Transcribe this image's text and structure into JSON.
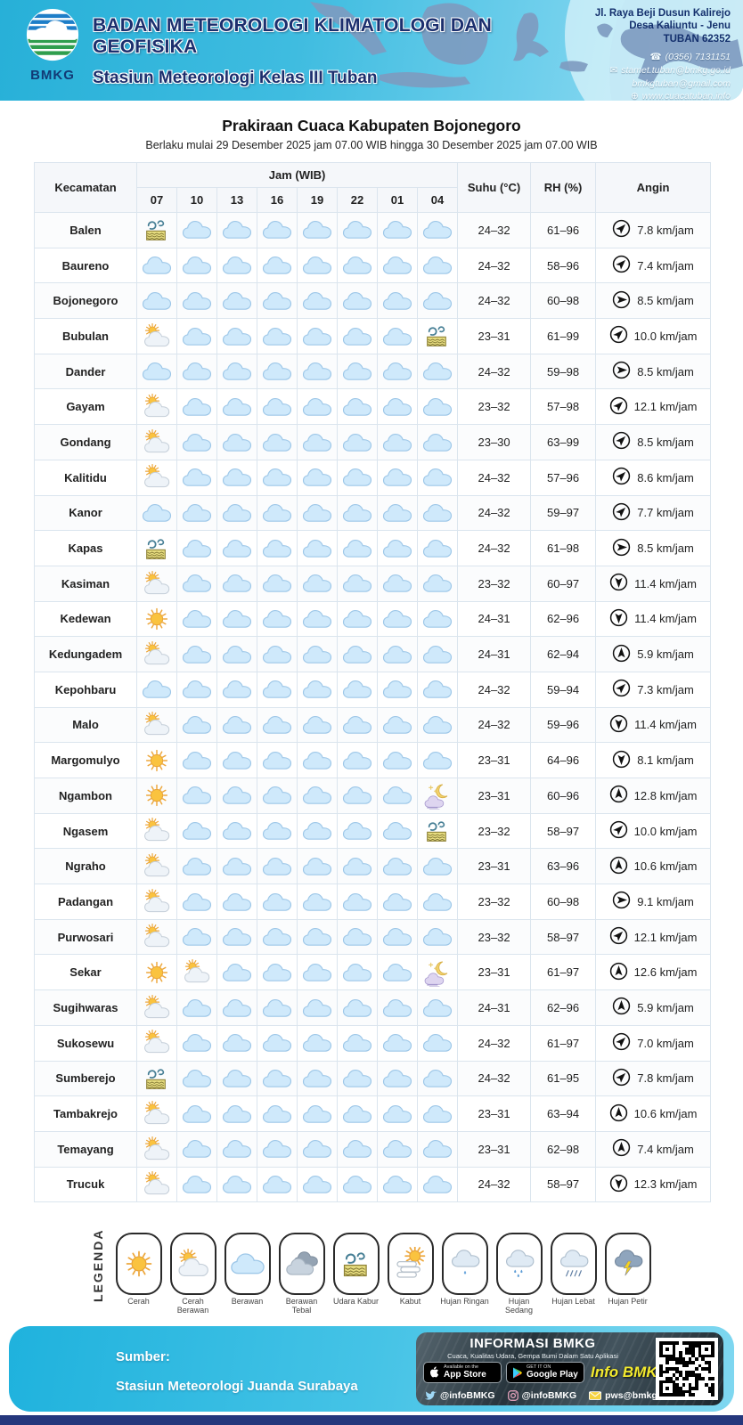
{
  "header": {
    "logo_text": "BMKG",
    "agency": "BADAN METEOROLOGI KLIMATOLOGI DAN GEOFISIKA",
    "station": "Stasiun Meteorologi Kelas III Tuban",
    "address_lines": [
      "Jl. Raya Beji Dusun Kalirejo",
      "Desa Kaliuntu - Jenu",
      "TUBAN 62352"
    ],
    "phone": "(0356) 7131151",
    "email1": "stamet.tuban@bmkg.go.id",
    "email2": "bmkgtuban@gmail.com",
    "website": "www.cuacatuban.info"
  },
  "title": "Prakiraan Cuaca Kabupaten Bojonegoro",
  "subtitle": "Berlaku mulai 29 Desember 2025 jam 07.00 WIB hingga 30 Desember 2025 jam 07.00 WIB",
  "table": {
    "col_kecamatan": "Kecamatan",
    "col_jam": "Jam (WIB)",
    "hours": [
      "07",
      "10",
      "13",
      "16",
      "19",
      "22",
      "01",
      "04"
    ],
    "col_suhu": "Suhu (°C)",
    "col_rh": "RH (%)",
    "col_angin": "Angin",
    "rows": [
      {
        "name": "Balen",
        "icons": [
          "udara-kabur",
          "berawan",
          "berawan",
          "berawan",
          "berawan",
          "berawan",
          "berawan",
          "berawan"
        ],
        "suhu": "24–32",
        "rh": "61–96",
        "wind_dir": "NE",
        "wind_speed": "7.8 km/jam"
      },
      {
        "name": "Baureno",
        "icons": [
          "berawan",
          "berawan",
          "berawan",
          "berawan",
          "berawan",
          "berawan",
          "berawan",
          "berawan"
        ],
        "suhu": "24–32",
        "rh": "58–96",
        "wind_dir": "NE",
        "wind_speed": "7.4 km/jam"
      },
      {
        "name": "Bojonegoro",
        "icons": [
          "berawan",
          "berawan",
          "berawan",
          "berawan",
          "berawan",
          "berawan",
          "berawan",
          "berawan"
        ],
        "suhu": "24–32",
        "rh": "60–98",
        "wind_dir": "E",
        "wind_speed": "8.5 km/jam"
      },
      {
        "name": "Bubulan",
        "icons": [
          "cerah-berawan",
          "berawan",
          "berawan",
          "berawan",
          "berawan",
          "berawan",
          "berawan",
          "udara-kabur"
        ],
        "suhu": "23–31",
        "rh": "61–99",
        "wind_dir": "NE",
        "wind_speed": "10.0 km/jam"
      },
      {
        "name": "Dander",
        "icons": [
          "berawan",
          "berawan",
          "berawan",
          "berawan",
          "berawan",
          "berawan",
          "berawan",
          "berawan"
        ],
        "suhu": "24–32",
        "rh": "59–98",
        "wind_dir": "E",
        "wind_speed": "8.5 km/jam"
      },
      {
        "name": "Gayam",
        "icons": [
          "cerah-berawan",
          "berawan",
          "berawan",
          "berawan",
          "berawan",
          "berawan",
          "berawan",
          "berawan"
        ],
        "suhu": "23–32",
        "rh": "57–98",
        "wind_dir": "NE",
        "wind_speed": "12.1 km/jam"
      },
      {
        "name": "Gondang",
        "icons": [
          "cerah-berawan",
          "berawan",
          "berawan",
          "berawan",
          "berawan",
          "berawan",
          "berawan",
          "berawan"
        ],
        "suhu": "23–30",
        "rh": "63–99",
        "wind_dir": "NE",
        "wind_speed": "8.5 km/jam"
      },
      {
        "name": "Kalitidu",
        "icons": [
          "cerah-berawan",
          "berawan",
          "berawan",
          "berawan",
          "berawan",
          "berawan",
          "berawan",
          "berawan"
        ],
        "suhu": "24–32",
        "rh": "57–96",
        "wind_dir": "NE",
        "wind_speed": "8.6 km/jam"
      },
      {
        "name": "Kanor",
        "icons": [
          "berawan",
          "berawan",
          "berawan",
          "berawan",
          "berawan",
          "berawan",
          "berawan",
          "berawan"
        ],
        "suhu": "24–32",
        "rh": "59–97",
        "wind_dir": "NE",
        "wind_speed": "7.7 km/jam"
      },
      {
        "name": "Kapas",
        "icons": [
          "udara-kabur",
          "berawan",
          "berawan",
          "berawan",
          "berawan",
          "berawan",
          "berawan",
          "berawan"
        ],
        "suhu": "24–32",
        "rh": "61–98",
        "wind_dir": "E",
        "wind_speed": "8.5 km/jam"
      },
      {
        "name": "Kasiman",
        "icons": [
          "cerah-berawan",
          "berawan",
          "berawan",
          "berawan",
          "berawan",
          "berawan",
          "berawan",
          "berawan"
        ],
        "suhu": "23–32",
        "rh": "60–97",
        "wind_dir": "S",
        "wind_speed": "11.4 km/jam"
      },
      {
        "name": "Kedewan",
        "icons": [
          "cerah",
          "berawan",
          "berawan",
          "berawan",
          "berawan",
          "berawan",
          "berawan",
          "berawan"
        ],
        "suhu": "24–31",
        "rh": "62–96",
        "wind_dir": "S",
        "wind_speed": "11.4 km/jam"
      },
      {
        "name": "Kedungadem",
        "icons": [
          "cerah-berawan",
          "berawan",
          "berawan",
          "berawan",
          "berawan",
          "berawan",
          "berawan",
          "berawan"
        ],
        "suhu": "24–31",
        "rh": "62–94",
        "wind_dir": "N",
        "wind_speed": "5.9 km/jam"
      },
      {
        "name": "Kepohbaru",
        "icons": [
          "berawan",
          "berawan",
          "berawan",
          "berawan",
          "berawan",
          "berawan",
          "berawan",
          "berawan"
        ],
        "suhu": "24–32",
        "rh": "59–94",
        "wind_dir": "NE",
        "wind_speed": "7.3 km/jam"
      },
      {
        "name": "Malo",
        "icons": [
          "cerah-berawan",
          "berawan",
          "berawan",
          "berawan",
          "berawan",
          "berawan",
          "berawan",
          "berawan"
        ],
        "suhu": "24–32",
        "rh": "59–96",
        "wind_dir": "S",
        "wind_speed": "11.4 km/jam"
      },
      {
        "name": "Margomulyo",
        "icons": [
          "cerah",
          "berawan",
          "berawan",
          "berawan",
          "berawan",
          "berawan",
          "berawan",
          "berawan"
        ],
        "suhu": "23–31",
        "rh": "64–96",
        "wind_dir": "S",
        "wind_speed": "8.1 km/jam"
      },
      {
        "name": "Ngambon",
        "icons": [
          "cerah",
          "berawan",
          "berawan",
          "berawan",
          "berawan",
          "berawan",
          "berawan",
          "kabut-malam"
        ],
        "suhu": "23–31",
        "rh": "60–96",
        "wind_dir": "N",
        "wind_speed": "12.8 km/jam"
      },
      {
        "name": "Ngasem",
        "icons": [
          "cerah-berawan",
          "berawan",
          "berawan",
          "berawan",
          "berawan",
          "berawan",
          "berawan",
          "udara-kabur"
        ],
        "suhu": "23–32",
        "rh": "58–97",
        "wind_dir": "NE",
        "wind_speed": "10.0 km/jam"
      },
      {
        "name": "Ngraho",
        "icons": [
          "cerah-berawan",
          "berawan",
          "berawan",
          "berawan",
          "berawan",
          "berawan",
          "berawan",
          "berawan"
        ],
        "suhu": "23–31",
        "rh": "63–96",
        "wind_dir": "N",
        "wind_speed": "10.6 km/jam"
      },
      {
        "name": "Padangan",
        "icons": [
          "cerah-berawan",
          "berawan",
          "berawan",
          "berawan",
          "berawan",
          "berawan",
          "berawan",
          "berawan"
        ],
        "suhu": "23–32",
        "rh": "60–98",
        "wind_dir": "E",
        "wind_speed": "9.1 km/jam"
      },
      {
        "name": "Purwosari",
        "icons": [
          "cerah-berawan",
          "berawan",
          "berawan",
          "berawan",
          "berawan",
          "berawan",
          "berawan",
          "berawan"
        ],
        "suhu": "23–32",
        "rh": "58–97",
        "wind_dir": "NE",
        "wind_speed": "12.1 km/jam"
      },
      {
        "name": "Sekar",
        "icons": [
          "cerah",
          "cerah-berawan",
          "berawan",
          "berawan",
          "berawan",
          "berawan",
          "berawan",
          "kabut-malam"
        ],
        "suhu": "23–31",
        "rh": "61–97",
        "wind_dir": "N",
        "wind_speed": "12.6 km/jam"
      },
      {
        "name": "Sugihwaras",
        "icons": [
          "cerah-berawan",
          "berawan",
          "berawan",
          "berawan",
          "berawan",
          "berawan",
          "berawan",
          "berawan"
        ],
        "suhu": "24–31",
        "rh": "62–96",
        "wind_dir": "N",
        "wind_speed": "5.9 km/jam"
      },
      {
        "name": "Sukosewu",
        "icons": [
          "cerah-berawan",
          "berawan",
          "berawan",
          "berawan",
          "berawan",
          "berawan",
          "berawan",
          "berawan"
        ],
        "suhu": "24–32",
        "rh": "61–97",
        "wind_dir": "NE",
        "wind_speed": "7.0 km/jam"
      },
      {
        "name": "Sumberejo",
        "icons": [
          "udara-kabur",
          "berawan",
          "berawan",
          "berawan",
          "berawan",
          "berawan",
          "berawan",
          "berawan"
        ],
        "suhu": "24–32",
        "rh": "61–95",
        "wind_dir": "NE",
        "wind_speed": "7.8 km/jam"
      },
      {
        "name": "Tambakrejo",
        "icons": [
          "cerah-berawan",
          "berawan",
          "berawan",
          "berawan",
          "berawan",
          "berawan",
          "berawan",
          "berawan"
        ],
        "suhu": "23–31",
        "rh": "63–94",
        "wind_dir": "N",
        "wind_speed": "10.6 km/jam"
      },
      {
        "name": "Temayang",
        "icons": [
          "cerah-berawan",
          "berawan",
          "berawan",
          "berawan",
          "berawan",
          "berawan",
          "berawan",
          "berawan"
        ],
        "suhu": "23–31",
        "rh": "62–98",
        "wind_dir": "N",
        "wind_speed": "7.4 km/jam"
      },
      {
        "name": "Trucuk",
        "icons": [
          "cerah-berawan",
          "berawan",
          "berawan",
          "berawan",
          "berawan",
          "berawan",
          "berawan",
          "berawan"
        ],
        "suhu": "24–32",
        "rh": "58–97",
        "wind_dir": "S",
        "wind_speed": "12.3 km/jam"
      }
    ]
  },
  "legend": {
    "title": "LEGENDA",
    "items": [
      {
        "icon": "cerah",
        "label": "Cerah"
      },
      {
        "icon": "cerah-berawan",
        "label": "Cerah Berawan"
      },
      {
        "icon": "berawan",
        "label": "Berawan"
      },
      {
        "icon": "berawan-tebal",
        "label": "Berawan Tebal"
      },
      {
        "icon": "udara-kabur",
        "label": "Udara Kabur"
      },
      {
        "icon": "kabut",
        "label": "Kabut"
      },
      {
        "icon": "hujan-ringan",
        "label": "Hujan Ringan"
      },
      {
        "icon": "hujan-sedang",
        "label": "Hujan Sedang"
      },
      {
        "icon": "hujan-lebat",
        "label": "Hujan Lebat"
      },
      {
        "icon": "hujan-petir",
        "label": "Hujan Petir"
      }
    ]
  },
  "footer": {
    "sumber_label": "Sumber:",
    "sumber_value": "Stasiun Meteorologi Juanda Surabaya",
    "info_title": "INFORMASI BMKG",
    "info_subtitle": "Cuaca, Kualitas Udara, Gempa Bumi Dalam Satu Aplikasi",
    "appstore_top": "Available on the",
    "appstore_bottom": "App Store",
    "gplay_top": "GET IT ON",
    "gplay_bottom": "Google Play",
    "app_name": "Info BMKG",
    "twitter": "@infoBMKG",
    "instagram": "@infoBMKG",
    "email": "pws@bmkg.go.id"
  },
  "colors": {
    "accent": "#2eb4da",
    "navy": "#1c2f6e",
    "cloud": "#cfe9fb",
    "yellow": "#f3ea2e"
  }
}
